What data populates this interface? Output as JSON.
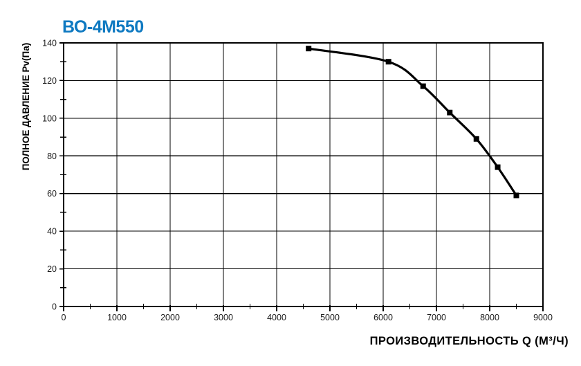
{
  "page": {
    "background": "#ffffff"
  },
  "chart_data": {
    "type": "line",
    "title": "ВО-4М550",
    "title_color": "#0e79c1",
    "xlabel": "ПРОИЗВОДИТЕЛЬНОСТЬ Q (М³/Ч)",
    "ylabel": "ПОЛНОЕ ДАВЛЕНИЕ Pv(Па)",
    "xlim": [
      0,
      9000
    ],
    "ylim": [
      0,
      140
    ],
    "x_major_ticks": [
      0,
      1000,
      2000,
      3000,
      4000,
      5000,
      6000,
      7000,
      8000,
      9000
    ],
    "x_tick_labels": [
      "0",
      "1000",
      "2000",
      "3000",
      "4000",
      "5000",
      "6000",
      "7000",
      "8000",
      "9000"
    ],
    "x_minor_step": 500,
    "y_major_ticks": [
      0,
      20,
      40,
      60,
      80,
      100,
      120,
      140
    ],
    "y_tick_labels": [
      "0",
      "20",
      "40",
      "60",
      "80",
      "100",
      "120",
      "140"
    ],
    "y_minor_step": 10,
    "grid": true,
    "legend_position": "none",
    "grid_color": "#000000",
    "axis_color": "#000000",
    "series": [
      {
        "name": "ВО-4М550",
        "color": "#000000",
        "marker": "square",
        "points": [
          [
            4600,
            137
          ],
          [
            6100,
            130
          ],
          [
            6750,
            117
          ],
          [
            7250,
            103
          ],
          [
            7750,
            89
          ],
          [
            8150,
            74
          ],
          [
            8500,
            59
          ]
        ]
      }
    ]
  }
}
